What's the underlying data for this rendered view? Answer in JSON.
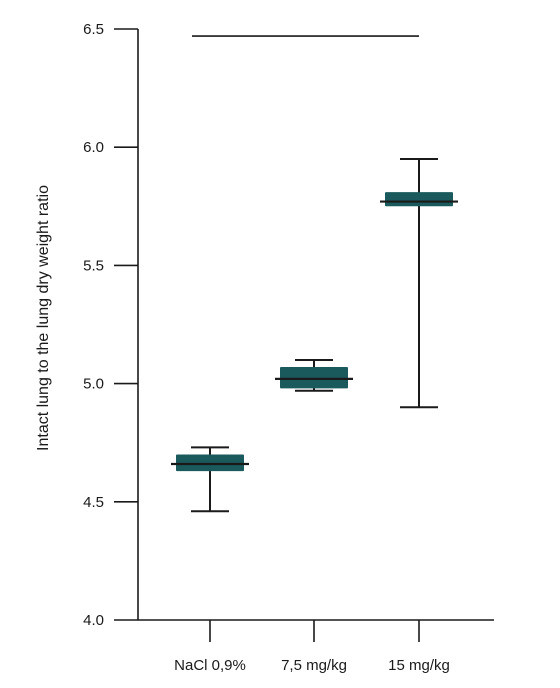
{
  "chart_data": {
    "type": "box",
    "ylabel": "Intact lung to the lung dry weight ratio",
    "ylim": [
      4.0,
      6.5
    ],
    "yticks": [
      "4.0",
      "4.5",
      "5.0",
      "5.5",
      "6.0",
      "6.5"
    ],
    "grid": false,
    "box_color": "#1b5a5c",
    "categories": [
      "NaCl 0,9%",
      "7,5 mg/kg",
      "15 mg/kg"
    ],
    "boxes": [
      {
        "min": 4.46,
        "q1": 4.63,
        "median": 4.66,
        "q3": 4.7,
        "max": 4.73
      },
      {
        "min": 4.97,
        "q1": 4.98,
        "median": 5.02,
        "q3": 5.07,
        "max": 5.1
      },
      {
        "min": 4.9,
        "q1": 5.75,
        "median": 5.77,
        "q3": 5.81,
        "max": 5.95
      }
    ],
    "bracket": {
      "from": 0,
      "to": 2,
      "y": 6.47
    }
  }
}
